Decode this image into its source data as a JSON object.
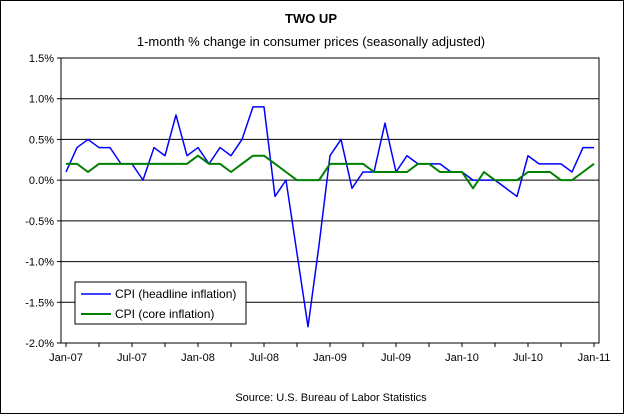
{
  "chart_data": {
    "type": "line",
    "title": "TWO UP",
    "subtitle": "1-month % change in consumer prices (seasonally adjusted)",
    "source": "Source: U.S. Bureau of Labor Statistics",
    "xlabel": "",
    "ylabel": "",
    "ylim": [
      -2.0,
      1.5
    ],
    "y_ticks": [
      "1.5%",
      "1.0%",
      "0.5%",
      "0.0%",
      "-0.5%",
      "-1.0%",
      "-1.5%",
      "-2.0%"
    ],
    "y_tick_values": [
      1.5,
      1.0,
      0.5,
      0.0,
      -0.5,
      -1.0,
      -1.5,
      -2.0
    ],
    "x_ticks": [
      "Jan-07",
      "Jul-07",
      "Jan-08",
      "Jul-08",
      "Jan-09",
      "Jul-09",
      "Jan-10",
      "Jul-10",
      "Jan-11"
    ],
    "x": [
      "Jan-07",
      "Feb-07",
      "Mar-07",
      "Apr-07",
      "May-07",
      "Jun-07",
      "Jul-07",
      "Aug-07",
      "Sep-07",
      "Oct-07",
      "Nov-07",
      "Dec-07",
      "Jan-08",
      "Feb-08",
      "Mar-08",
      "Apr-08",
      "May-08",
      "Jun-08",
      "Jul-08",
      "Aug-08",
      "Sep-08",
      "Oct-08",
      "Nov-08",
      "Dec-08",
      "Jan-09",
      "Feb-09",
      "Mar-09",
      "Apr-09",
      "May-09",
      "Jun-09",
      "Jul-09",
      "Aug-09",
      "Sep-09",
      "Oct-09",
      "Nov-09",
      "Dec-09",
      "Jan-10",
      "Feb-10",
      "Mar-10",
      "Apr-10",
      "May-10",
      "Jun-10",
      "Jul-10",
      "Aug-10",
      "Sep-10",
      "Oct-10",
      "Nov-10",
      "Dec-10",
      "Jan-11"
    ],
    "grid": true,
    "legend_position": "bottom-left",
    "series": [
      {
        "name": "CPI (headline inflation)",
        "color": "#0000ff",
        "values": [
          0.1,
          0.4,
          0.5,
          0.4,
          0.4,
          0.2,
          0.2,
          0.0,
          0.4,
          0.3,
          0.8,
          0.3,
          0.4,
          0.2,
          0.4,
          0.3,
          0.5,
          0.9,
          0.9,
          -0.2,
          0.0,
          -0.9,
          -1.8,
          -0.8,
          0.3,
          0.5,
          -0.1,
          0.1,
          0.1,
          0.7,
          0.1,
          0.3,
          0.2,
          0.2,
          0.2,
          0.1,
          0.1,
          0.0,
          0.0,
          0.0,
          -0.1,
          -0.2,
          0.3,
          0.2,
          0.2,
          0.2,
          0.1,
          0.4,
          0.4
        ]
      },
      {
        "name": "CPI (core inflation)",
        "color": "#008000",
        "values": [
          0.2,
          0.2,
          0.1,
          0.2,
          0.2,
          0.2,
          0.2,
          0.2,
          0.2,
          0.2,
          0.2,
          0.2,
          0.3,
          0.2,
          0.2,
          0.1,
          0.2,
          0.3,
          0.3,
          0.2,
          0.1,
          0.0,
          0.0,
          0.0,
          0.2,
          0.2,
          0.2,
          0.2,
          0.1,
          0.1,
          0.1,
          0.1,
          0.2,
          0.2,
          0.1,
          0.1,
          0.1,
          -0.1,
          0.1,
          0.0,
          0.0,
          0.0,
          0.1,
          0.1,
          0.1,
          0.0,
          0.0,
          0.1,
          0.2
        ]
      }
    ]
  }
}
